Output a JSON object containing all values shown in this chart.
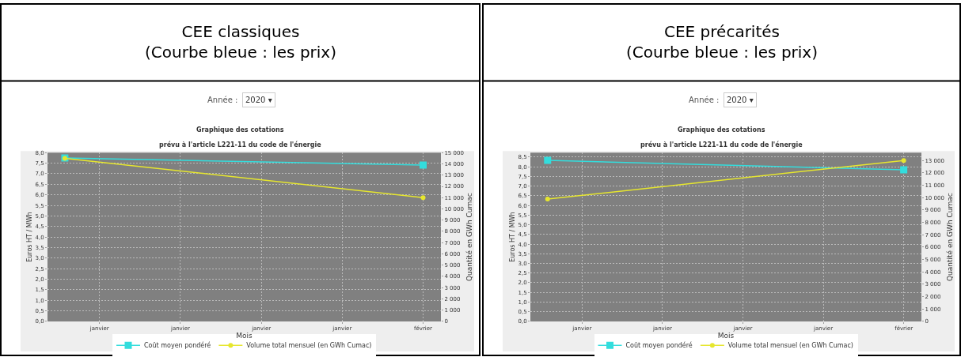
{
  "chart_data": [
    {
      "type": "line",
      "title": "CEE classiques\n(Courbe bleue : les prix)",
      "subtitle": "Graphique des cotations\nprévu à l'article L221-11 du code de l'énergie",
      "annotations": [
        "Année :",
        "2020 ▾"
      ],
      "x": [
        "2020-01-01",
        "2020-02-01"
      ],
      "xlim": [
        "2019-12-30T12:00",
        "2020-02-02T13:00"
      ],
      "xticks": [
        {
          "value": "2020-01-04",
          "label": "janvier"
        },
        {
          "value": "2020-01-11",
          "label": "janvier"
        },
        {
          "value": "2020-01-18",
          "label": "janvier"
        },
        {
          "value": "2020-01-25",
          "label": "janvier"
        },
        {
          "value": "2020-02-01",
          "label": "février"
        }
      ],
      "xlabel": "Mois",
      "ylabel": "Euros HT / MWh",
      "y2label": "Quantité en GWh Cumac",
      "ylim": [
        0,
        8.0
      ],
      "yticks": [
        {
          "value": 0,
          "label": "0,0"
        },
        {
          "value": 0.5,
          "label": "0,5"
        },
        {
          "value": 1,
          "label": "1,0"
        },
        {
          "value": 1.5,
          "label": "1,5"
        },
        {
          "value": 2,
          "label": "2,0"
        },
        {
          "value": 2.5,
          "label": "2,5"
        },
        {
          "value": 3,
          "label": "3,0"
        },
        {
          "value": 3.5,
          "label": "3,5"
        },
        {
          "value": 4,
          "label": "4,0"
        },
        {
          "value": 4.5,
          "label": "4,5"
        },
        {
          "value": 5,
          "label": "5,0"
        },
        {
          "value": 5.5,
          "label": "5,5"
        },
        {
          "value": 6,
          "label": "6,0"
        },
        {
          "value": 6.5,
          "label": "6,5"
        },
        {
          "value": 7,
          "label": "7,0"
        },
        {
          "value": 7.5,
          "label": "7,5"
        },
        {
          "value": 8,
          "label": "8,0"
        }
      ],
      "y2lim": [
        0,
        15000
      ],
      "y2ticks": [
        0,
        {
          "value": 1000,
          "label": "1 000"
        },
        {
          "value": 2000,
          "label": "2 000"
        },
        {
          "value": 3000,
          "label": "3 000"
        },
        {
          "value": 4000,
          "label": "4 000"
        },
        {
          "value": 5000,
          "label": "5 000"
        },
        {
          "value": 6000,
          "label": "6 000"
        },
        {
          "value": 7000,
          "label": "7 000"
        },
        {
          "value": 8000,
          "label": "8 000"
        },
        {
          "value": 9000,
          "label": "9 000"
        },
        {
          "value": 10000,
          "label": "10 000"
        },
        {
          "value": 11000,
          "label": "11 000"
        },
        {
          "value": 12000,
          "label": "12 000"
        },
        {
          "value": 13000,
          "label": "13 000"
        },
        {
          "value": 14000,
          "label": "14 000"
        },
        {
          "value": 15000,
          "label": "15 000"
        }
      ],
      "grid": true,
      "legend": "bottom",
      "series": [
        {
          "name": "Coût moyen pondéré",
          "color": "#33dddd",
          "marker": "square",
          "values": [
            7.75,
            7.41
          ]
        },
        {
          "name": "Volume total mensuel (en GWh Cumac)",
          "color": "#e6e62e",
          "marker": "circle",
          "axis": "y2",
          "values": [
            14500,
            11000
          ]
        }
      ]
    },
    {
      "type": "line",
      "title": "CEE précarités\n(Courbe bleue : les prix)",
      "subtitle": "Graphique des cotations\nprévu à l'article L221-11 du code de l'énergie",
      "annotations": [
        "Année :",
        "2020 ▾"
      ],
      "x": [
        "2020-01-01",
        "2020-02-01"
      ],
      "xlim": [
        "2019-12-30T12:00",
        "2020-02-02T13:00"
      ],
      "xticks": [
        {
          "value": "2020-01-04",
          "label": "janvier"
        },
        {
          "value": "2020-01-11",
          "label": "janvier"
        },
        {
          "value": "2020-01-18",
          "label": "janvier"
        },
        {
          "value": "2020-01-25",
          "label": "janvier"
        },
        {
          "value": "2020-02-01",
          "label": "février"
        }
      ],
      "xlabel": "Mois",
      "ylabel": "Euros HT / MWh",
      "y2label": "Quantité en GWh Cumac",
      "ylim": [
        0,
        8.73
      ],
      "yticks": [
        {
          "value": 0,
          "label": "0,0"
        },
        {
          "value": 0.5,
          "label": "0,5"
        },
        {
          "value": 1,
          "label": "1,0"
        },
        {
          "value": 1.5,
          "label": "1,5"
        },
        {
          "value": 2,
          "label": "2,0"
        },
        {
          "value": 2.5,
          "label": "2,5"
        },
        {
          "value": 3,
          "label": "3,0"
        },
        {
          "value": 3.5,
          "label": "3,5"
        },
        {
          "value": 4,
          "label": "4,0"
        },
        {
          "value": 4.5,
          "label": "4,5"
        },
        {
          "value": 5,
          "label": "5,0"
        },
        {
          "value": 5.5,
          "label": "5,5"
        },
        {
          "value": 6,
          "label": "6,0"
        },
        {
          "value": 6.5,
          "label": "6,5"
        },
        {
          "value": 7,
          "label": "7,0"
        },
        {
          "value": 7.5,
          "label": "7,5"
        },
        {
          "value": 8,
          "label": "8,0"
        },
        {
          "value": 8.5,
          "label": "8,5"
        }
      ],
      "y2lim": [
        0,
        13630
      ],
      "y2ticks": [
        0,
        {
          "value": 1000,
          "label": "1 000"
        },
        {
          "value": 2000,
          "label": "2 000"
        },
        {
          "value": 3000,
          "label": "3 000"
        },
        {
          "value": 4000,
          "label": "4 000"
        },
        {
          "value": 5000,
          "label": "5 000"
        },
        {
          "value": 6000,
          "label": "6 000"
        },
        {
          "value": 7000,
          "label": "7 000"
        },
        {
          "value": 8000,
          "label": "8 000"
        },
        {
          "value": 9000,
          "label": "9 000"
        },
        {
          "value": 10000,
          "label": "10 000"
        },
        {
          "value": 11000,
          "label": "11 000"
        },
        {
          "value": 12000,
          "label": "12 000"
        },
        {
          "value": 13000,
          "label": "13 000"
        }
      ],
      "grid": true,
      "legend": "bottom",
      "series": [
        {
          "name": "Coût moyen pondéré",
          "color": "#33dddd",
          "marker": "square",
          "values": [
            8.33,
            7.84
          ]
        },
        {
          "name": "Volume total mensuel (en GWh Cumac)",
          "color": "#e6e62e",
          "marker": "circle",
          "axis": "y2",
          "values": [
            9880,
            13000
          ]
        }
      ]
    }
  ]
}
